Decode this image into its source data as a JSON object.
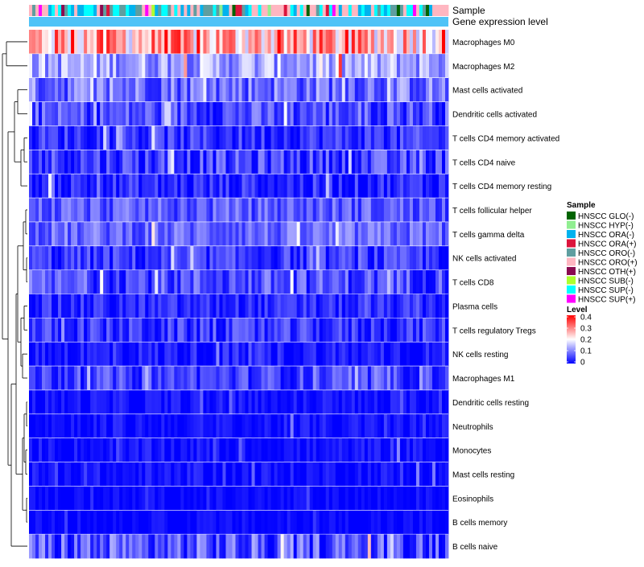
{
  "chart_data": {
    "type": "heatmap",
    "title": "",
    "annotation_tracks": [
      "Sample",
      "Gene expression level"
    ],
    "rows": [
      {
        "label": "Macrophages M0",
        "mean": 0.26,
        "spread": 0.12
      },
      {
        "label": "Macrophages M2",
        "mean": 0.13,
        "spread": 0.07
      },
      {
        "label": "Mast cells activated",
        "mean": 0.09,
        "spread": 0.07
      },
      {
        "label": "Dendritic cells activated",
        "mean": 0.06,
        "spread": 0.06
      },
      {
        "label": "T cells CD4 memory activated",
        "mean": 0.04,
        "spread": 0.05
      },
      {
        "label": "T cells CD4 naive",
        "mean": 0.05,
        "spread": 0.06
      },
      {
        "label": "T cells CD4 memory resting",
        "mean": 0.03,
        "spread": 0.05
      },
      {
        "label": "T cells follicular helper",
        "mean": 0.07,
        "spread": 0.05
      },
      {
        "label": "T cells gamma delta",
        "mean": 0.08,
        "spread": 0.05
      },
      {
        "label": "NK cells activated",
        "mean": 0.04,
        "spread": 0.05
      },
      {
        "label": "T cells CD8",
        "mean": 0.06,
        "spread": 0.06
      },
      {
        "label": "Plasma cells",
        "mean": 0.03,
        "spread": 0.04
      },
      {
        "label": "T cells regulatory  Tregs",
        "mean": 0.04,
        "spread": 0.05
      },
      {
        "label": "NK cells resting",
        "mean": 0.02,
        "spread": 0.04
      },
      {
        "label": "Macrophages M1",
        "mean": 0.05,
        "spread": 0.05
      },
      {
        "label": "Dendritic cells resting",
        "mean": 0.01,
        "spread": 0.03
      },
      {
        "label": "Neutrophils",
        "mean": 0.01,
        "spread": 0.03
      },
      {
        "label": "Monocytes",
        "mean": 0.01,
        "spread": 0.03
      },
      {
        "label": "Mast cells resting",
        "mean": 0.01,
        "spread": 0.03
      },
      {
        "label": "Eosinophils",
        "mean": 0.005,
        "spread": 0.02
      },
      {
        "label": "B cells memory",
        "mean": 0.005,
        "spread": 0.02
      },
      {
        "label": "B cells naive",
        "mean": 0.06,
        "spread": 0.08
      }
    ],
    "n_samples": 130,
    "sample_legend": {
      "title": "Sample",
      "items": [
        {
          "label": "HNSCC GLO(-)",
          "color": "#006400"
        },
        {
          "label": "HNSCC HYP(-)",
          "color": "#90ee90"
        },
        {
          "label": "HNSCC ORA(-)",
          "color": "#00b2ee"
        },
        {
          "label": "HNSCC ORA(+)",
          "color": "#dc143c"
        },
        {
          "label": "HNSCC ORO(-)",
          "color": "#5f9ea0"
        },
        {
          "label": "HNSCC ORO(+)",
          "color": "#ffb6c1"
        },
        {
          "label": "HNSCC OTH(+)",
          "color": "#8b0a50"
        },
        {
          "label": "HNSCC SUB(-)",
          "color": "#adff2f"
        },
        {
          "label": "HNSCC SUP(-)",
          "color": "#00ffff"
        },
        {
          "label": "HNSCC SUP(+)",
          "color": "#ff00ff"
        }
      ]
    },
    "level_legend": {
      "title": "Level",
      "ticks": [
        "0.4",
        "0.3",
        "0.2",
        "0.1",
        "0"
      ],
      "range": [
        0,
        0.4
      ],
      "colors": {
        "low": "#0000ff",
        "mid": "#ffffff",
        "high": "#ff0000"
      }
    },
    "expression_track_color": "#4fc3f7"
  }
}
